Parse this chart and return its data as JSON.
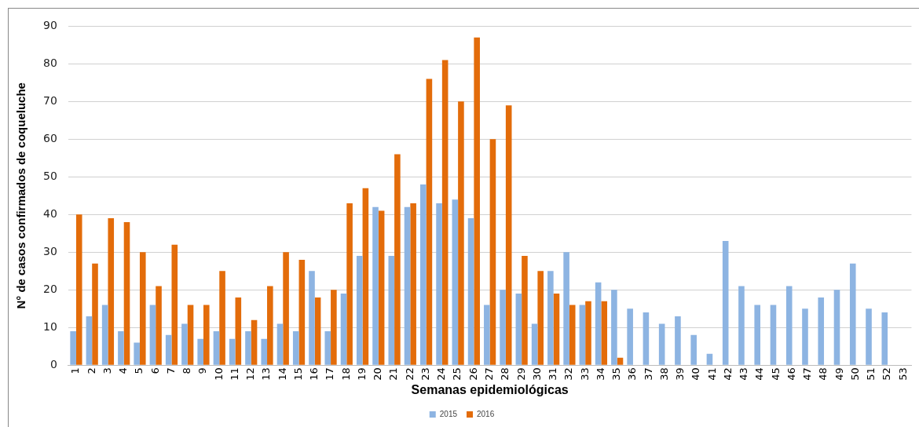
{
  "chart_data": {
    "type": "bar",
    "xlabel": "Semanas epidemiológicas",
    "ylabel": "N° de casos confirmados de coqueluche",
    "categories": [
      "1",
      "2",
      "3",
      "4",
      "5",
      "6",
      "7",
      "8",
      "9",
      "10",
      "11",
      "12",
      "13",
      "14",
      "15",
      "16",
      "17",
      "18",
      "19",
      "20",
      "21",
      "22",
      "23",
      "24",
      "25",
      "26",
      "27",
      "28",
      "29",
      "30",
      "31",
      "32",
      "33",
      "34",
      "35",
      "36",
      "37",
      "38",
      "39",
      "40",
      "41",
      "42",
      "43",
      "44",
      "45",
      "46",
      "47",
      "48",
      "49",
      "50",
      "51",
      "52",
      "53"
    ],
    "series": [
      {
        "name": "2015",
        "color": "#8db4e2",
        "values": [
          9,
          13,
          16,
          9,
          6,
          16,
          8,
          11,
          7,
          9,
          7,
          9,
          7,
          11,
          9,
          25,
          9,
          19,
          29,
          42,
          29,
          42,
          48,
          43,
          44,
          39,
          16,
          20,
          19,
          11,
          25,
          30,
          16,
          22,
          20,
          15,
          14,
          11,
          13,
          8,
          3,
          33,
          21,
          16,
          16,
          21,
          15,
          18,
          20,
          27,
          15,
          14,
          null
        ]
      },
      {
        "name": "2016",
        "color": "#e36c0a",
        "values": [
          40,
          27,
          39,
          38,
          30,
          21,
          32,
          16,
          16,
          25,
          18,
          12,
          21,
          30,
          28,
          18,
          20,
          43,
          47,
          41,
          56,
          43,
          76,
          81,
          70,
          87,
          60,
          69,
          29,
          25,
          19,
          16,
          17,
          17,
          2,
          null,
          null,
          null,
          null,
          null,
          null,
          null,
          null,
          null,
          null,
          null,
          null,
          null,
          null,
          null,
          null,
          null,
          null
        ]
      }
    ],
    "ylim": [
      0,
      90
    ],
    "yticks": [
      0,
      10,
      20,
      30,
      40,
      50,
      60,
      70,
      80,
      90
    ],
    "grid": "y",
    "legend": "bottom"
  }
}
